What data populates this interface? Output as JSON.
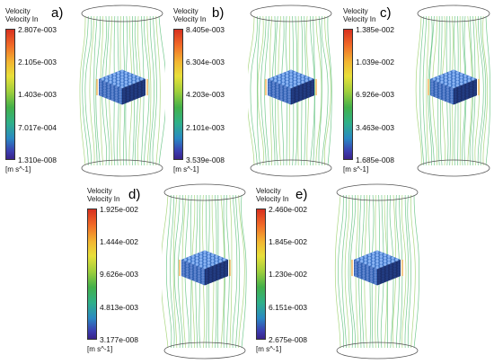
{
  "panels": [
    {
      "letter": "a)",
      "title1": "Velocity",
      "title2": "Velocity In",
      "unit": "[m s^-1]",
      "ticks": [
        "2.807e-003",
        "2.105e-003",
        "1.403e-003",
        "7.017e-004",
        "1.310e-008"
      ]
    },
    {
      "letter": "b)",
      "title1": "Velocity",
      "title2": "Velocity In",
      "unit": "[m s^-1]",
      "ticks": [
        "8.405e-003",
        "6.304e-003",
        "4.203e-003",
        "2.101e-003",
        "3.539e-008"
      ]
    },
    {
      "letter": "c)",
      "title1": "Velocity",
      "title2": "Velocity In",
      "unit": "[m s^-1]",
      "ticks": [
        "1.385e-002",
        "1.039e-002",
        "6.926e-003",
        "3.463e-003",
        "1.685e-008"
      ]
    },
    {
      "letter": "d)",
      "title1": "Velocity",
      "title2": "Velocity In",
      "unit": "[m s^-1]",
      "ticks": [
        "1.925e-002",
        "1.444e-002",
        "9.626e-003",
        "4.813e-003",
        "3.177e-008"
      ]
    },
    {
      "letter": "e)",
      "title1": "Velocity",
      "title2": "Velocity In",
      "unit": "[m s^-1]",
      "ticks": [
        "2.460e-002",
        "1.845e-002",
        "1.230e-002",
        "6.151e-003",
        "2.675e-008"
      ]
    }
  ],
  "colors": {
    "streamline_main": "#5cbf7a",
    "streamline_alt": "#9ad06a",
    "cube_blue": "#2f5fb0",
    "cube_dark": "#1c2f6b",
    "cylinder_outline": "#555555"
  }
}
